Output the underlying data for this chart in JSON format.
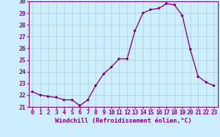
{
  "x": [
    0,
    1,
    2,
    3,
    4,
    5,
    6,
    7,
    8,
    9,
    10,
    11,
    12,
    13,
    14,
    15,
    16,
    17,
    18,
    19,
    20,
    21,
    22,
    23
  ],
  "y": [
    22.3,
    22.0,
    21.9,
    21.8,
    21.6,
    21.6,
    21.1,
    21.6,
    22.8,
    23.8,
    24.4,
    25.1,
    25.1,
    27.5,
    29.0,
    29.3,
    29.4,
    29.8,
    29.7,
    28.8,
    25.9,
    23.6,
    23.1,
    22.8
  ],
  "line_color": "#800080",
  "marker_color": "#800080",
  "bg_color": "#cceeff",
  "grid_color": "#aacccc",
  "axis_color": "#800080",
  "xlabel": "Windchill (Refroidissement éolien,°C)",
  "ylim": [
    21,
    30
  ],
  "xlim_min": -0.5,
  "xlim_max": 23.5,
  "yticks": [
    21,
    22,
    23,
    24,
    25,
    26,
    27,
    28,
    29,
    30
  ],
  "xticks": [
    0,
    1,
    2,
    3,
    4,
    5,
    6,
    7,
    8,
    9,
    10,
    11,
    12,
    13,
    14,
    15,
    16,
    17,
    18,
    19,
    20,
    21,
    22,
    23
  ],
  "xlabel_fontsize": 6.5,
  "tick_fontsize": 6.0,
  "marker_size": 3.5,
  "line_width": 1.0
}
